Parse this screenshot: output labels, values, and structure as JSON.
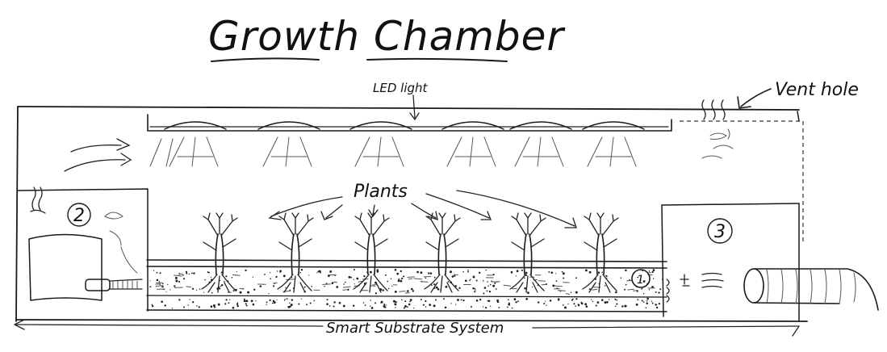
{
  "title": "Growth Chamber",
  "labels": {
    "led": "LED light",
    "vent": "Vent hole",
    "plants": "Plants",
    "substrate": "Smart Substrate System"
  },
  "markers": {
    "m1": "1",
    "m2": "2",
    "m3": "3"
  },
  "plants_count": 6,
  "led_lamps_count": 6
}
